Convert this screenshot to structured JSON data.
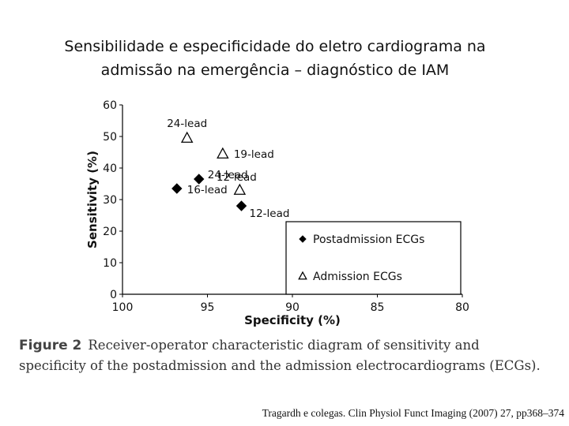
{
  "title": {
    "line1": "Sensibilidade e especificidade do eletro cardiograma na",
    "line2": "admissão na emergência – diagnóstico de IAM"
  },
  "caption": {
    "label": "Figure 2",
    "text": "Receiver-operator characteristic diagram of sensitivity and specificity of the postadmission and the admission electrocardiograms (ECGs)."
  },
  "source": "Tragardh e colegas. Clin Physiol Funct Imaging (2007) 27, pp368–374",
  "chart_data": {
    "type": "scatter",
    "xlabel": "Specificity (%)",
    "ylabel": "Sensitivity (%)",
    "xlim": [
      100,
      80
    ],
    "ylim": [
      0,
      60
    ],
    "x_ticks": [
      100,
      95,
      90,
      85,
      80
    ],
    "y_ticks": [
      0,
      10,
      20,
      30,
      40,
      50,
      60
    ],
    "grid": false,
    "legend_position": "bottom-right",
    "series": [
      {
        "name": "Postadmission ECGs",
        "marker": "diamond-filled",
        "color": "#000000",
        "points": [
          {
            "x": 93.0,
            "y": 28.0,
            "label": "12-lead"
          },
          {
            "x": 95.5,
            "y": 36.5,
            "label": "24-lead"
          },
          {
            "x": 96.8,
            "y": 33.5,
            "label": "16-lead"
          }
        ]
      },
      {
        "name": "Admission ECGs",
        "marker": "triangle-open",
        "color": "#000000",
        "points": [
          {
            "x": 93.1,
            "y": 33.0,
            "label": "12-lead"
          },
          {
            "x": 94.1,
            "y": 44.5,
            "label": "19-lead"
          },
          {
            "x": 96.2,
            "y": 49.5,
            "label": "24-lead"
          }
        ]
      }
    ]
  }
}
